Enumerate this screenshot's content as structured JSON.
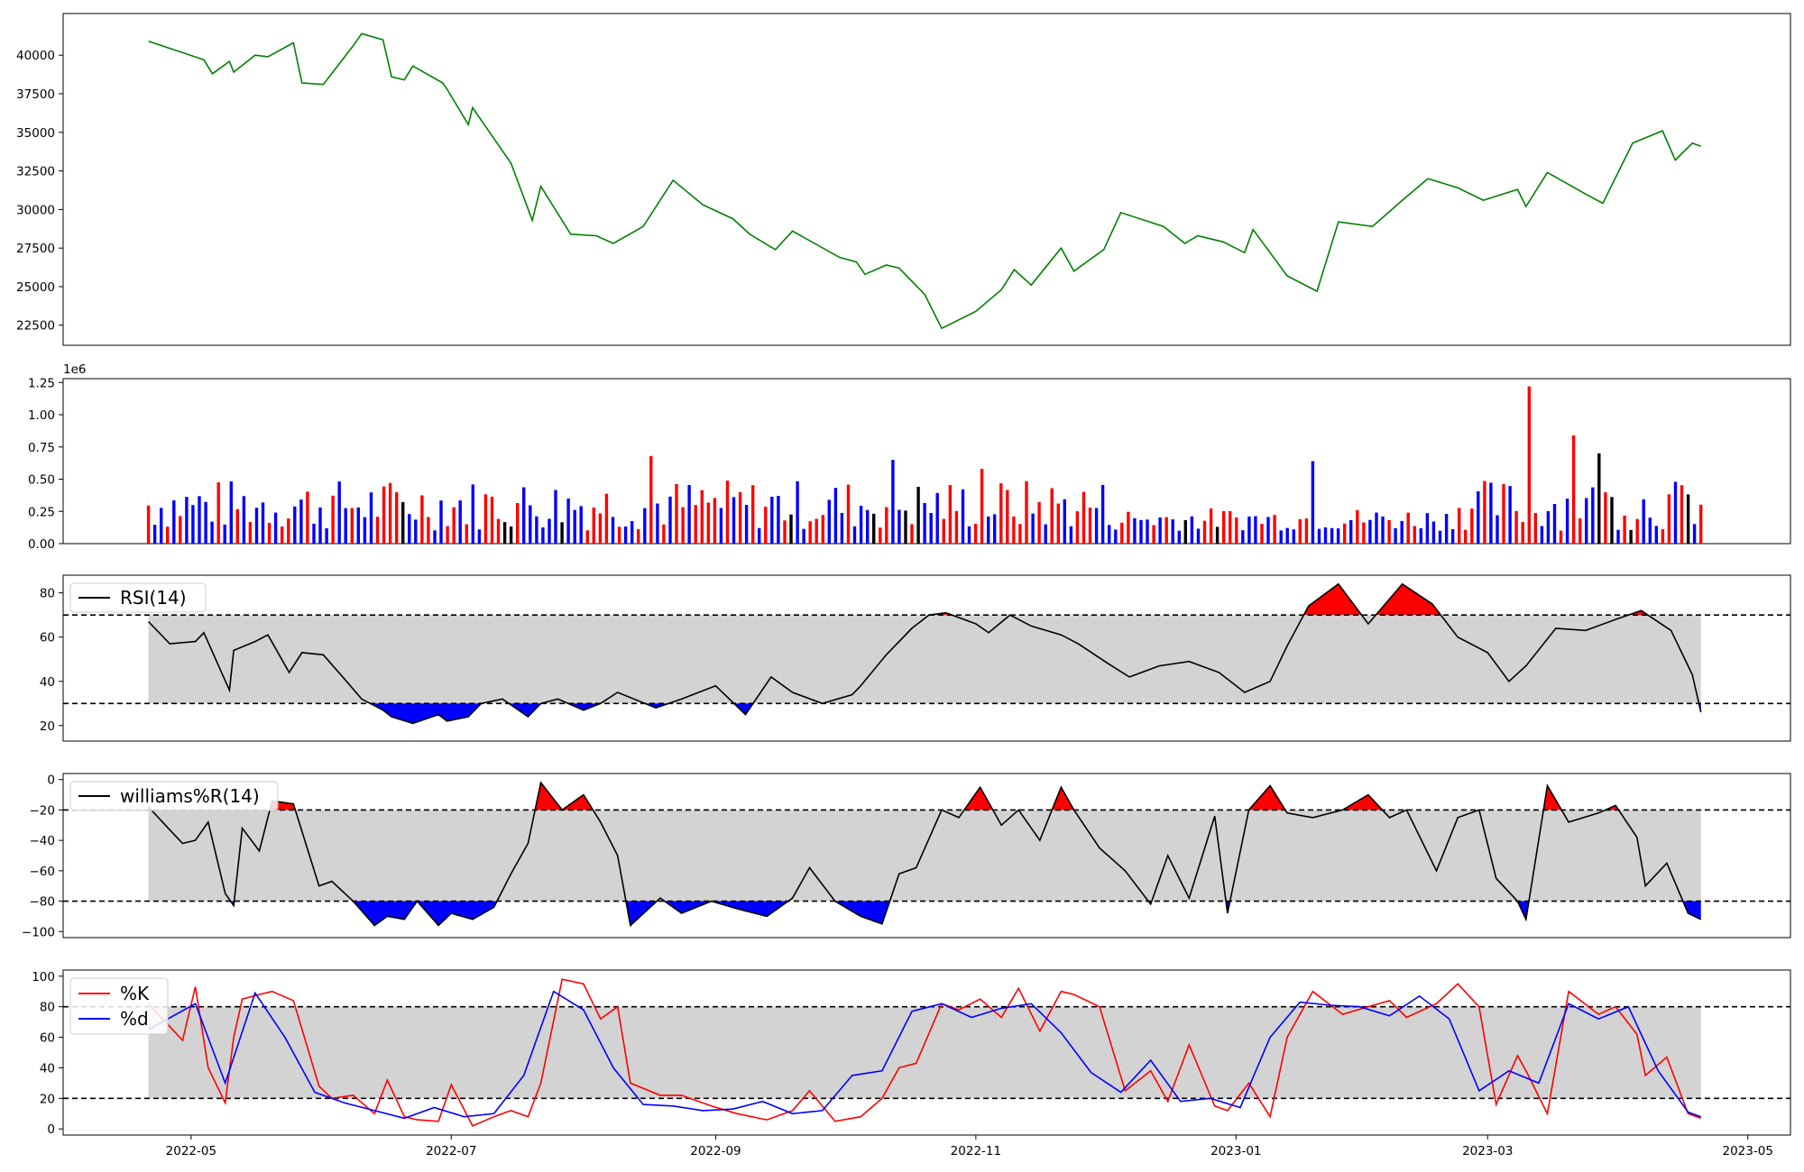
{
  "chart_data": [
    {
      "id": "price",
      "type": "line",
      "ylim": [
        21200,
        42700
      ],
      "yticks": [
        22500,
        25000,
        27500,
        30000,
        32500,
        35000,
        37500,
        40000
      ],
      "colors": {
        "line": "#008000"
      },
      "grid": false,
      "series": [
        {
          "x": [
            "2022-04-21",
            "2022-05-04",
            "2022-05-06",
            "2022-05-10",
            "2022-05-11",
            "2022-05-16",
            "2022-05-19",
            "2022-05-25",
            "2022-05-27",
            "2022-06-01",
            "2022-06-08",
            "2022-06-10",
            "2022-06-15",
            "2022-06-17",
            "2022-06-20",
            "2022-06-22",
            "2022-06-29",
            "2022-06-30",
            "2022-07-05",
            "2022-07-06",
            "2022-07-13",
            "2022-07-15",
            "2022-07-20",
            "2022-07-22",
            "2022-07-29",
            "2022-08-04",
            "2022-08-08",
            "2022-08-15",
            "2022-08-22",
            "2022-08-29",
            "2022-09-05",
            "2022-09-09",
            "2022-09-15",
            "2022-09-19",
            "2022-09-30",
            "2022-10-04",
            "2022-10-06",
            "2022-10-11",
            "2022-10-14",
            "2022-10-20",
            "2022-10-24",
            "2022-11-01",
            "2022-11-07",
            "2022-11-10",
            "2022-11-14",
            "2022-11-21",
            "2022-11-24",
            "2022-12-01",
            "2022-12-05",
            "2022-12-15",
            "2022-12-20",
            "2022-12-23",
            "2022-12-29",
            "2023-01-03",
            "2023-01-05",
            "2023-01-13",
            "2023-01-20",
            "2023-01-25",
            "2023-02-02",
            "2023-02-09",
            "2023-02-15",
            "2023-02-22",
            "2023-02-28",
            "2023-03-08",
            "2023-03-10",
            "2023-03-15",
            "2023-03-24",
            "2023-03-28",
            "2023-04-04",
            "2023-04-11",
            "2023-04-14",
            "2023-04-18",
            "2023-04-20"
          ],
          "y": [
            40900,
            39700,
            38800,
            39600,
            38900,
            40000,
            39900,
            40800,
            38200,
            38100,
            40600,
            41400,
            41000,
            38600,
            38400,
            39300,
            38200,
            37800,
            35500,
            36600,
            33800,
            33000,
            29300,
            31500,
            28400,
            28300,
            27800,
            28900,
            31900,
            30300,
            29400,
            28400,
            27400,
            28600,
            26900,
            26600,
            25800,
            26400,
            26200,
            24500,
            22300,
            23400,
            24800,
            26100,
            25100,
            27500,
            26000,
            27400,
            29800,
            28900,
            27800,
            28300,
            27900,
            27200,
            28700,
            25700,
            24700,
            29200,
            28900,
            30600,
            32000,
            31400,
            30600,
            31300,
            30200,
            32400,
            31000,
            30400,
            34300,
            35100,
            33200,
            34300,
            34100
          ]
        }
      ]
    },
    {
      "id": "volume",
      "type": "bar",
      "offset_text": "1e6",
      "ylim": [
        0,
        1.28
      ],
      "yticks": [
        0.0,
        0.25,
        0.5,
        0.75,
        1.0,
        1.25
      ],
      "colors": {
        "up": "#ff0000",
        "down": "#0000ff",
        "flat": "#000000"
      },
      "grid": false,
      "x_range": [
        "2022-04-21",
        "2023-04-20"
      ],
      "count": 245,
      "highlights": [
        {
          "date": "2022-08-17",
          "value": 0.68
        },
        {
          "date": "2022-10-13",
          "value": 0.65
        },
        {
          "date": "2022-11-03",
          "value": 0.58
        },
        {
          "date": "2023-01-19",
          "value": 0.64
        },
        {
          "date": "2023-03-10",
          "value": 1.22
        },
        {
          "date": "2023-03-21",
          "value": 0.84
        },
        {
          "date": "2023-03-27",
          "value": 0.7
        }
      ],
      "typical_range": [
        0.1,
        0.5
      ]
    },
    {
      "id": "rsi",
      "type": "line",
      "ylim": [
        13,
        88
      ],
      "yticks": [
        20,
        40,
        60,
        80
      ],
      "band": [
        30,
        70
      ],
      "colors": {
        "line": "#000000",
        "above": "#ff0000",
        "below": "#0000ff",
        "band": "#d3d3d3"
      },
      "legend": {
        "label": "RSI(14)",
        "placement": "upper left"
      },
      "series": [
        {
          "name": "RSI(14)",
          "x": [
            "2022-04-21",
            "2022-04-26",
            "2022-05-02",
            "2022-05-04",
            "2022-05-10",
            "2022-05-11",
            "2022-05-16",
            "2022-05-19",
            "2022-05-24",
            "2022-05-27",
            "2022-06-01",
            "2022-06-06",
            "2022-06-10",
            "2022-06-15",
            "2022-06-17",
            "2022-06-22",
            "2022-06-28",
            "2022-06-30",
            "2022-07-05",
            "2022-07-08",
            "2022-07-13",
            "2022-07-19",
            "2022-07-22",
            "2022-07-26",
            "2022-08-01",
            "2022-08-05",
            "2022-08-09",
            "2022-08-18",
            "2022-08-24",
            "2022-09-01",
            "2022-09-08",
            "2022-09-14",
            "2022-09-19",
            "2022-09-26",
            "2022-10-03",
            "2022-10-05",
            "2022-10-11",
            "2022-10-17",
            "2022-10-21",
            "2022-10-25",
            "2022-11-01",
            "2022-11-04",
            "2022-11-09",
            "2022-11-14",
            "2022-11-21",
            "2022-11-25",
            "2022-12-02",
            "2022-12-07",
            "2022-12-14",
            "2022-12-21",
            "2022-12-28",
            "2023-01-03",
            "2023-01-09",
            "2023-01-13",
            "2023-01-18",
            "2023-01-25",
            "2023-02-01",
            "2023-02-09",
            "2023-02-16",
            "2023-02-22",
            "2023-03-01",
            "2023-03-06",
            "2023-03-10",
            "2023-03-17",
            "2023-03-24",
            "2023-03-31",
            "2023-04-06",
            "2023-04-13",
            "2023-04-18",
            "2023-04-20"
          ],
          "y": [
            67,
            57,
            58,
            62,
            36,
            54,
            58,
            61,
            44,
            53,
            52,
            41,
            32,
            27,
            24,
            21,
            25,
            22,
            24,
            30,
            32,
            24,
            30,
            32,
            27,
            30,
            35,
            28,
            32,
            38,
            25,
            42,
            35,
            30,
            34,
            38,
            52,
            64,
            70,
            71,
            66,
            62,
            70,
            65,
            61,
            57,
            48,
            42,
            47,
            49,
            44,
            35,
            40,
            56,
            74,
            84,
            66,
            84,
            75,
            60,
            53,
            40,
            47,
            64,
            63,
            68,
            72,
            63,
            43,
            26
          ]
        }
      ]
    },
    {
      "id": "williams",
      "type": "line",
      "ylim": [
        -104,
        4
      ],
      "yticks": [
        0,
        -20,
        -40,
        -60,
        -80,
        -100
      ],
      "band": [
        -80,
        -20
      ],
      "colors": {
        "line": "#000000",
        "above": "#ff0000",
        "below": "#0000ff",
        "band": "#d3d3d3"
      },
      "legend": {
        "label": "williams%R(14)",
        "placement": "upper left"
      },
      "series": [
        {
          "name": "williams%R(14)",
          "x": [
            "2022-04-21",
            "2022-04-26",
            "2022-04-29",
            "2022-05-02",
            "2022-05-05",
            "2022-05-09",
            "2022-05-11",
            "2022-05-13",
            "2022-05-17",
            "2022-05-20",
            "2022-05-25",
            "2022-05-31",
            "2022-06-03",
            "2022-06-08",
            "2022-06-13",
            "2022-06-16",
            "2022-06-20",
            "2022-06-23",
            "2022-06-28",
            "2022-07-01",
            "2022-07-06",
            "2022-07-11",
            "2022-07-15",
            "2022-07-19",
            "2022-07-22",
            "2022-07-27",
            "2022-08-01",
            "2022-08-05",
            "2022-08-09",
            "2022-08-12",
            "2022-08-19",
            "2022-08-24",
            "2022-08-31",
            "2022-09-06",
            "2022-09-13",
            "2022-09-19",
            "2022-09-23",
            "2022-09-29",
            "2022-10-05",
            "2022-10-10",
            "2022-10-14",
            "2022-10-18",
            "2022-10-24",
            "2022-10-28",
            "2022-11-02",
            "2022-11-07",
            "2022-11-11",
            "2022-11-16",
            "2022-11-21",
            "2022-11-24",
            "2022-11-30",
            "2022-12-06",
            "2022-12-12",
            "2022-12-16",
            "2022-12-21",
            "2022-12-27",
            "2022-12-30",
            "2023-01-04",
            "2023-01-09",
            "2023-01-13",
            "2023-01-19",
            "2023-01-26",
            "2023-02-01",
            "2023-02-06",
            "2023-02-10",
            "2023-02-17",
            "2023-02-22",
            "2023-02-27",
            "2023-03-03",
            "2023-03-08",
            "2023-03-10",
            "2023-03-15",
            "2023-03-20",
            "2023-03-27",
            "2023-03-31",
            "2023-04-05",
            "2023-04-07",
            "2023-04-12",
            "2023-04-17",
            "2023-04-20"
          ],
          "y": [
            -18,
            -33,
            -42,
            -40,
            -28,
            -75,
            -83,
            -32,
            -47,
            -14,
            -16,
            -70,
            -67,
            -80,
            -96,
            -90,
            -92,
            -80,
            -96,
            -88,
            -92,
            -84,
            -62,
            -42,
            -2,
            -20,
            -10,
            -28,
            -50,
            -96,
            -78,
            -88,
            -80,
            -85,
            -90,
            -78,
            -58,
            -80,
            -90,
            -95,
            -62,
            -58,
            -20,
            -25,
            -5,
            -30,
            -20,
            -40,
            -5,
            -20,
            -45,
            -60,
            -82,
            -50,
            -78,
            -24,
            -88,
            -20,
            -4,
            -22,
            -25,
            -20,
            -10,
            -25,
            -20,
            -60,
            -25,
            -20,
            -65,
            -80,
            -92,
            -4,
            -28,
            -22,
            -17,
            -38,
            -70,
            -55,
            -88,
            -92
          ]
        }
      ]
    },
    {
      "id": "stochastic",
      "type": "line",
      "ylim": [
        -4,
        104
      ],
      "yticks": [
        0,
        20,
        40,
        60,
        80,
        100
      ],
      "band": [
        20,
        80
      ],
      "x_ticks": [
        "2022-05",
        "2022-07",
        "2022-09",
        "2022-11",
        "2023-01",
        "2023-03",
        "2023-05"
      ],
      "colors": {
        "k": "#ff0000",
        "d": "#0000ff",
        "band": "#d3d3d3"
      },
      "legend": {
        "labels": [
          "%K",
          "%d"
        ],
        "placement": "upper left"
      },
      "series": [
        {
          "name": "%K",
          "x": [
            "2022-04-21",
            "2022-04-26",
            "2022-04-29",
            "2022-05-02",
            "2022-05-05",
            "2022-05-09",
            "2022-05-11",
            "2022-05-13",
            "2022-05-17",
            "2022-05-20",
            "2022-05-25",
            "2022-05-31",
            "2022-06-03",
            "2022-06-08",
            "2022-06-13",
            "2022-06-16",
            "2022-06-20",
            "2022-06-23",
            "2022-06-28",
            "2022-07-01",
            "2022-07-06",
            "2022-07-11",
            "2022-07-15",
            "2022-07-19",
            "2022-07-22",
            "2022-07-27",
            "2022-08-01",
            "2022-08-05",
            "2022-08-09",
            "2022-08-12",
            "2022-08-19",
            "2022-08-24",
            "2022-08-31",
            "2022-09-06",
            "2022-09-13",
            "2022-09-19",
            "2022-09-23",
            "2022-09-29",
            "2022-10-05",
            "2022-10-10",
            "2022-10-14",
            "2022-10-18",
            "2022-10-24",
            "2022-10-28",
            "2022-11-02",
            "2022-11-07",
            "2022-11-11",
            "2022-11-16",
            "2022-11-21",
            "2022-11-24",
            "2022-11-30",
            "2022-12-06",
            "2022-12-12",
            "2022-12-16",
            "2022-12-21",
            "2022-12-27",
            "2022-12-30",
            "2023-01-04",
            "2023-01-09",
            "2023-01-13",
            "2023-01-19",
            "2023-01-26",
            "2023-02-01",
            "2023-02-06",
            "2023-02-10",
            "2023-02-17",
            "2023-02-22",
            "2023-02-27",
            "2023-03-03",
            "2023-03-08",
            "2023-03-10",
            "2023-03-15",
            "2023-03-20",
            "2023-03-27",
            "2023-03-31",
            "2023-04-05",
            "2023-04-07",
            "2023-04-12",
            "2023-04-17",
            "2023-04-20"
          ],
          "y": [
            82,
            67,
            58,
            93,
            40,
            17,
            60,
            85,
            88,
            90,
            84,
            28,
            20,
            22,
            10,
            32,
            8,
            6,
            5,
            29,
            2,
            8,
            12,
            8,
            30,
            98,
            95,
            72,
            80,
            30,
            22,
            22,
            15,
            10,
            6,
            12,
            25,
            5,
            8,
            20,
            40,
            43,
            82,
            78,
            85,
            73,
            92,
            64,
            90,
            88,
            80,
            25,
            38,
            18,
            55,
            15,
            12,
            30,
            8,
            60,
            90,
            75,
            80,
            84,
            73,
            82,
            95,
            80,
            16,
            48,
            38,
            10,
            90,
            75,
            80,
            62,
            35,
            47,
            10,
            7
          ]
        },
        {
          "name": "%d",
          "x": [
            "2022-04-21",
            "2022-05-02",
            "2022-05-09",
            "2022-05-16",
            "2022-05-23",
            "2022-05-30",
            "2022-06-06",
            "2022-06-13",
            "2022-06-20",
            "2022-06-27",
            "2022-07-04",
            "2022-07-11",
            "2022-07-18",
            "2022-07-25",
            "2022-08-01",
            "2022-08-08",
            "2022-08-15",
            "2022-08-22",
            "2022-08-29",
            "2022-09-05",
            "2022-09-12",
            "2022-09-19",
            "2022-09-26",
            "2022-10-03",
            "2022-10-10",
            "2022-10-17",
            "2022-10-24",
            "2022-10-31",
            "2022-11-07",
            "2022-11-14",
            "2022-11-21",
            "2022-11-28",
            "2022-12-05",
            "2022-12-12",
            "2022-12-19",
            "2022-12-26",
            "2023-01-02",
            "2023-01-09",
            "2023-01-16",
            "2023-01-23",
            "2023-01-30",
            "2023-02-06",
            "2023-02-13",
            "2023-02-20",
            "2023-02-27",
            "2023-03-06",
            "2023-03-13",
            "2023-03-20",
            "2023-03-27",
            "2023-04-03",
            "2023-04-10",
            "2023-04-17",
            "2023-04-20"
          ],
          "y": [
            65,
            82,
            30,
            89,
            60,
            24,
            17,
            12,
            7,
            14,
            8,
            10,
            35,
            90,
            78,
            40,
            16,
            15,
            12,
            13,
            18,
            10,
            12,
            35,
            38,
            77,
            82,
            73,
            79,
            82,
            63,
            37,
            24,
            45,
            18,
            20,
            14,
            60,
            83,
            81,
            80,
            74,
            87,
            72,
            25,
            38,
            30,
            82,
            72,
            80,
            38,
            11,
            8
          ]
        }
      ]
    }
  ]
}
